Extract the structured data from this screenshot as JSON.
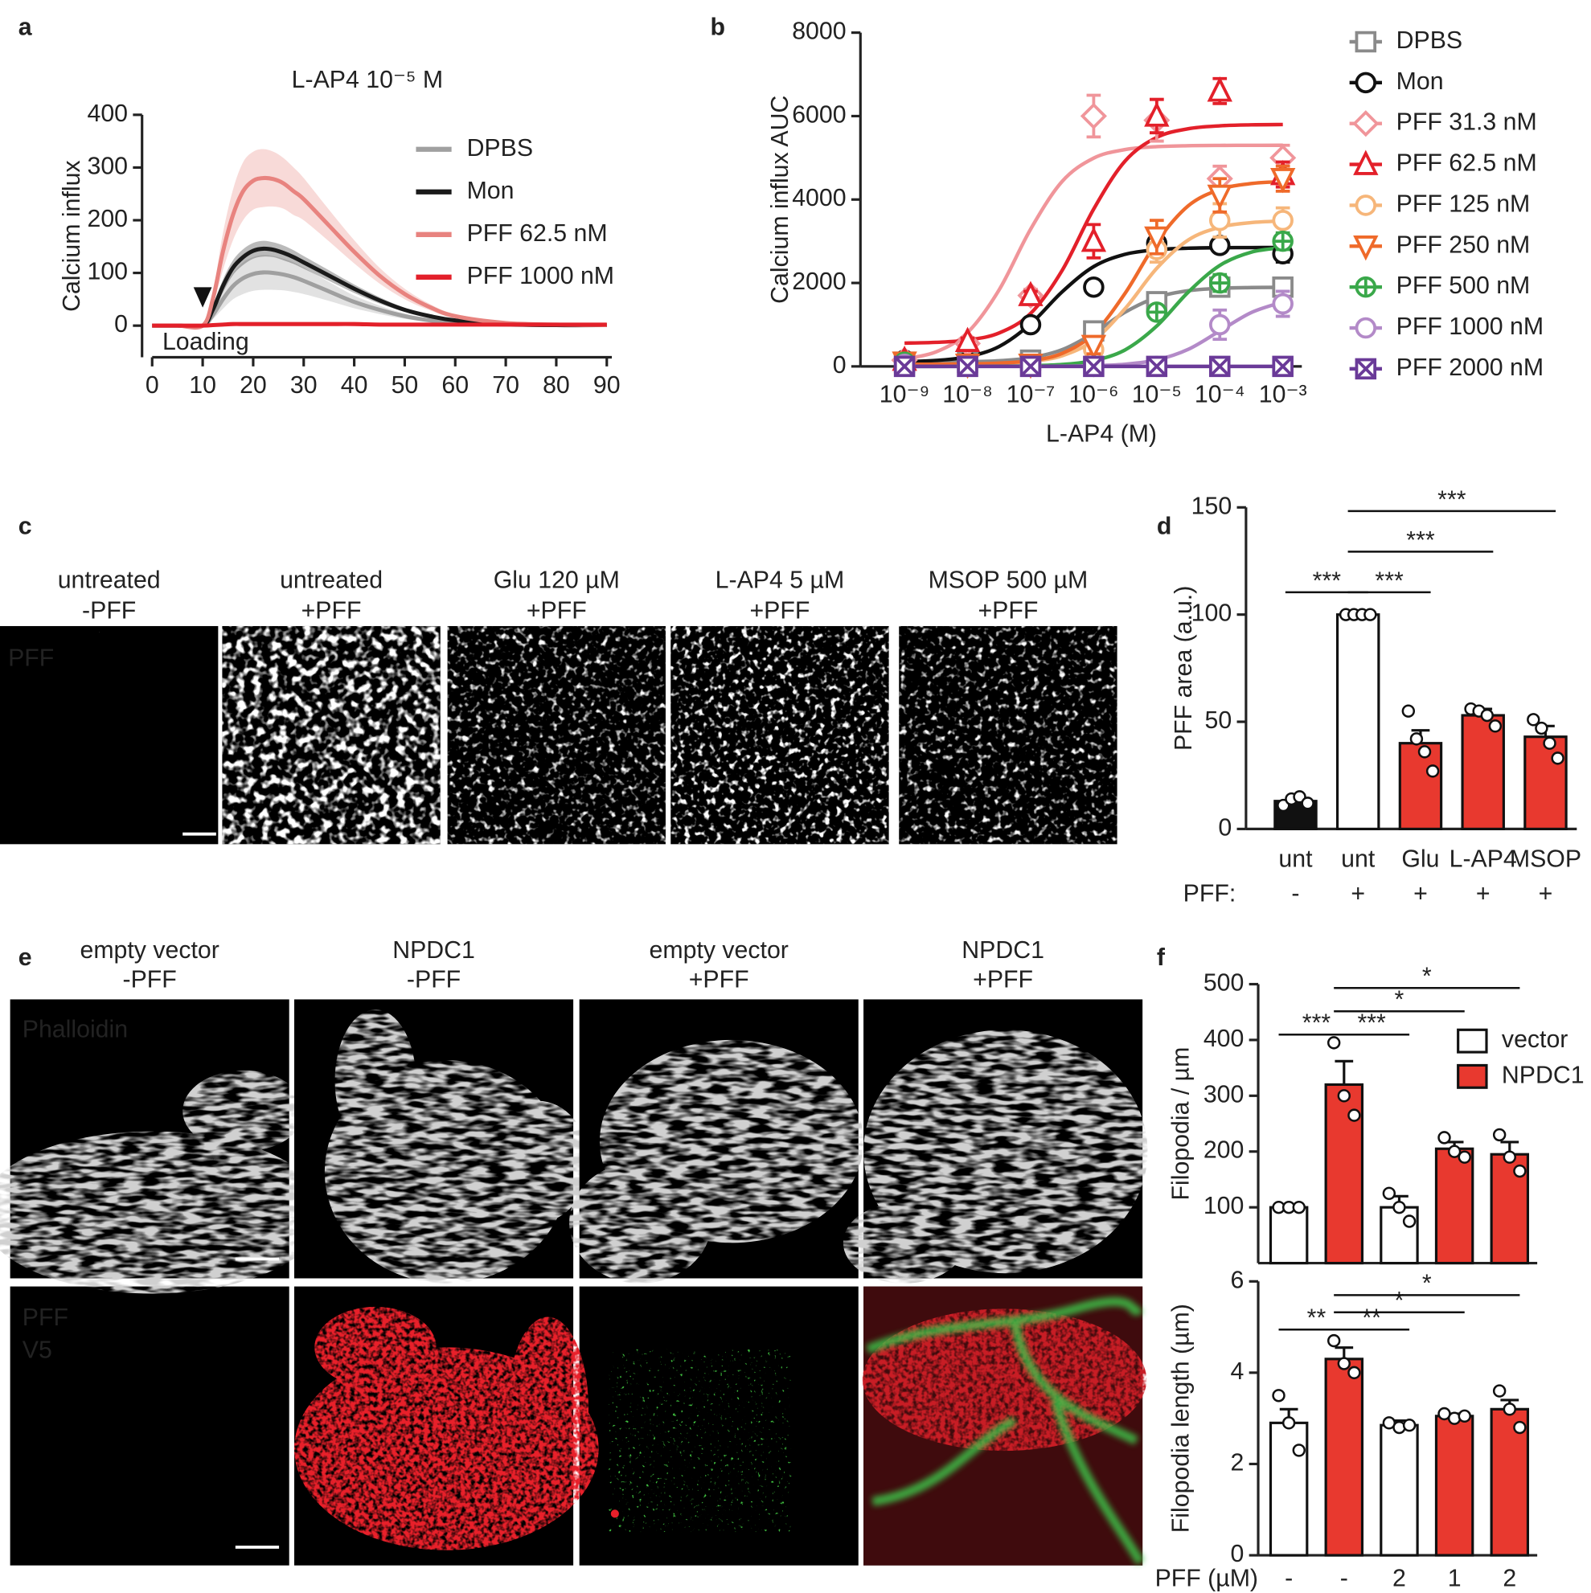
{
  "panel_labels": [
    "a",
    "b",
    "c",
    "d",
    "e",
    "f"
  ],
  "image_panels": [
    {
      "columns": [
        [
          "untreated",
          "-PFF"
        ],
        [
          "untreated",
          "+PFF"
        ],
        [
          "Glu 120 µM",
          "+PFF"
        ],
        [
          "L-AP4 5 µM",
          "+PFF"
        ],
        [
          "MSOP 500 µM",
          "+PFF"
        ]
      ],
      "channels": [
        "PFF"
      ],
      "channel_colors": [
        "#ffffff"
      ]
    },
    {
      "columns": [
        [
          "empty vector",
          "-PFF"
        ],
        [
          "NPDC1",
          "-PFF"
        ],
        [
          "empty vector",
          "+PFF"
        ],
        [
          "NPDC1",
          "+PFF"
        ]
      ],
      "channels": [
        "Phalloidin",
        "PFF",
        "V5"
      ],
      "channel_colors": [
        "#ffffff",
        "#7ac943",
        "#e8202a"
      ]
    }
  ],
  "chart_data": [
    {
      "type": "line",
      "title": "L-AP4 10⁻⁵ M",
      "ylabel": "Calcium influx",
      "annotation": "Loading",
      "marker_x": 10,
      "x": [
        0,
        5,
        10,
        12,
        14,
        16,
        18,
        20,
        22,
        24,
        26,
        28,
        30,
        35,
        40,
        45,
        50,
        55,
        60,
        70,
        80,
        90
      ],
      "xlim": [
        -2,
        91
      ],
      "xticks": [
        0,
        10,
        20,
        30,
        40,
        50,
        60,
        70,
        80,
        90
      ],
      "ylim": [
        -60,
        400
      ],
      "yticks": [
        0,
        100,
        200,
        300,
        400
      ],
      "series": [
        {
          "name": "DPBS",
          "color": "#a0a0a0",
          "values": [
            0,
            0,
            0,
            20,
            50,
            75,
            90,
            98,
            101,
            100,
            97,
            92,
            85,
            65,
            45,
            30,
            18,
            10,
            5,
            2,
            1,
            1
          ],
          "errors": [
            0,
            0,
            0,
            8,
            18,
            25,
            30,
            32,
            33,
            32,
            30,
            28,
            25,
            18,
            12,
            8,
            5,
            3,
            2,
            1,
            1,
            1
          ]
        },
        {
          "name": "Mon",
          "color": "#1a1a1a",
          "values": [
            0,
            0,
            0,
            30,
            75,
            110,
            130,
            142,
            146,
            144,
            138,
            130,
            120,
            95,
            70,
            48,
            30,
            18,
            10,
            3,
            1,
            1
          ],
          "errors": [
            0,
            0,
            0,
            6,
            12,
            14,
            15,
            15,
            15,
            14,
            14,
            13,
            12,
            10,
            8,
            6,
            4,
            3,
            2,
            1,
            1,
            1
          ]
        },
        {
          "name": "PFF 62.5 nM",
          "color": "#e8837f",
          "values": [
            0,
            0,
            0,
            50,
            140,
            210,
            255,
            275,
            280,
            278,
            270,
            255,
            240,
            190,
            140,
            95,
            60,
            35,
            18,
            5,
            2,
            1
          ],
          "errors": [
            0,
            0,
            0,
            12,
            35,
            48,
            55,
            55,
            55,
            52,
            48,
            45,
            40,
            30,
            22,
            15,
            10,
            6,
            4,
            2,
            1,
            1
          ]
        },
        {
          "name": "PFF 1000 nM",
          "color": "#e3202a",
          "values": [
            0,
            0,
            0,
            1,
            2,
            3,
            3,
            3,
            3,
            3,
            3,
            3,
            3,
            3,
            3,
            2,
            2,
            2,
            2,
            2,
            2,
            2
          ],
          "errors": [
            0,
            0,
            0,
            1,
            1,
            1,
            1,
            1,
            1,
            1,
            1,
            1,
            1,
            1,
            1,
            1,
            1,
            1,
            1,
            1,
            1,
            1
          ]
        }
      ]
    },
    {
      "type": "scatter",
      "xscale": "log",
      "xlabel": "L-AP4 (M)",
      "ylabel": "Calcium influx AUC",
      "x": [
        1e-09,
        1e-08,
        1e-07,
        1e-06,
        1e-05,
        0.0001,
        0.001
      ],
      "fit_x": [
        1e-09,
        3.16e-09,
        1e-08,
        3.16e-08,
        1e-07,
        3.16e-07,
        1e-06,
        3.16e-06,
        1e-05,
        3.16e-05,
        0.0001,
        0.000316,
        0.001
      ],
      "xlim": [
        2e-10,
        0.002
      ],
      "xticks": [
        {
          "value": 1e-09,
          "label": "10⁻⁹"
        },
        {
          "value": 1e-08,
          "label": "10⁻⁸"
        },
        {
          "value": 1e-07,
          "label": "10⁻⁷"
        },
        {
          "value": 1e-06,
          "label": "10⁻⁶"
        },
        {
          "value": 1e-05,
          "label": "10⁻⁵"
        },
        {
          "value": 0.0001,
          "label": "10⁻⁴"
        },
        {
          "value": 0.001,
          "label": "10⁻³"
        }
      ],
      "ylim": [
        0,
        8000
      ],
      "yticks": [
        0,
        2000,
        4000,
        6000,
        8000
      ],
      "series": [
        {
          "name": "DPBS",
          "color": "#8a8a8a",
          "marker": "square",
          "values": [
            100,
            100,
            150,
            850,
            1550,
            1900,
            1900
          ],
          "errors": [
            60,
            40,
            60,
            150,
            150,
            150,
            150
          ],
          "fit": [
            101,
            104,
            111,
            135,
            207,
            400,
            797,
            1300,
            1654,
            1814,
            1872,
            1890,
            1895
          ]
        },
        {
          "name": "Mon",
          "color": "#111111",
          "marker": "circle",
          "values": [
            150,
            100,
            1000,
            1900,
            2950,
            2900,
            2700
          ],
          "errors": [
            80,
            40,
            100,
            100,
            150,
            150,
            200
          ],
          "fit": [
            114,
            143,
            231,
            476,
            1017,
            1787,
            2392,
            2687,
            2796,
            2833,
            2845,
            2848,
            2850
          ]
        },
        {
          "name": "PFF 31.3 nM",
          "color": "#f0959a",
          "marker": "diamond",
          "values": [
            150,
            550,
            1700,
            6000,
            5900,
            4500,
            5000
          ],
          "errors": [
            80,
            100,
            150,
            500,
            500,
            300,
            300
          ],
          "fit": [
            181,
            348,
            812,
            1833,
            3290,
            4433,
            4992,
            5198,
            5267,
            5290,
            5297,
            5299,
            5300
          ]
        },
        {
          "name": "PFF 62.5 nM",
          "color": "#e3202a",
          "marker": "triangle",
          "values": [
            150,
            600,
            1700,
            3000,
            6000,
            6600,
            4600
          ],
          "errors": [
            80,
            80,
            100,
            400,
            400,
            300,
            300
          ],
          "fit": [
            558,
            576,
            632,
            800,
            1269,
            2300,
            3771,
            4925,
            5489,
            5697,
            5767,
            5790,
            5797
          ]
        },
        {
          "name": "PFF 125 nM",
          "color": "#f6b67a",
          "marker": "circle",
          "values": [
            100,
            50,
            50,
            400,
            2800,
            3500,
            3500
          ],
          "errors": [
            40,
            40,
            40,
            100,
            300,
            400,
            300
          ],
          "fit": [
            51,
            52,
            57,
            72,
            118,
            255,
            625,
            1387,
            2350,
            3029,
            3336,
            3447,
            3483
          ]
        },
        {
          "name": "PFF 250 nM",
          "color": "#ef6a2a",
          "marker": "triangle-down",
          "values": [
            100,
            50,
            50,
            500,
            3100,
            4100,
            4500
          ],
          "errors": [
            40,
            40,
            40,
            200,
            400,
            400,
            300
          ],
          "fit": [
            51,
            53,
            59,
            78,
            136,
            312,
            783,
            1755,
            2983,
            3849,
            4240,
            4383,
            4428
          ]
        },
        {
          "name": "PFF 500 nM",
          "color": "#3aa84a",
          "marker": "circle-plus",
          "values": [
            100,
            0,
            0,
            0,
            1300,
            2000,
            3000
          ],
          "errors": [
            30,
            30,
            30,
            30,
            150,
            200,
            200
          ],
          "fit": [
            0,
            0,
            1,
            5,
            15,
            46,
            140,
            397,
            967,
            1780,
            2420,
            2739,
            2846
          ]
        },
        {
          "name": "PFF 1000 nM",
          "color": "#b38ac8",
          "marker": "circle",
          "values": [
            50,
            0,
            0,
            0,
            0,
            1000,
            1500
          ],
          "errors": [
            20,
            20,
            20,
            20,
            20,
            350,
            300
          ],
          "fit": [
            0,
            0,
            0,
            1,
            2,
            5,
            17,
            52,
            155,
            409,
            850,
            1291,
            1545
          ]
        },
        {
          "name": "PFF 2000 nM",
          "color": "#6a3a98",
          "marker": "square-x",
          "values": [
            0,
            0,
            0,
            0,
            0,
            0,
            0
          ],
          "errors": [
            10,
            10,
            10,
            10,
            10,
            10,
            10
          ],
          "fit": [
            0,
            0,
            0,
            0,
            0,
            0,
            0,
            0,
            0,
            0,
            0,
            0,
            0
          ]
        }
      ]
    },
    {
      "type": "bar",
      "ylabel": "PFF area (a.u.)",
      "categories": [
        "unt",
        "unt",
        "Glu",
        "L-AP4",
        "MSOP"
      ],
      "row_label": "PFF:",
      "row_values": [
        "-",
        "+",
        "+",
        "+",
        "+"
      ],
      "values": [
        13,
        100,
        40,
        53,
        43
      ],
      "errors": [
        2,
        0,
        6,
        3,
        5
      ],
      "points": [
        [
          11,
          14,
          15,
          12
        ],
        [
          100,
          100,
          100,
          100
        ],
        [
          55,
          42,
          36,
          27
        ],
        [
          56,
          55,
          53,
          48
        ],
        [
          51,
          47,
          40,
          33
        ]
      ],
      "colors": [
        "#111111",
        "#ffffff",
        "#e8392f",
        "#e8392f",
        "#e8392f"
      ],
      "ylim": [
        0,
        150
      ],
      "yticks": [
        0,
        50,
        100,
        150
      ],
      "significance": [
        {
          "pair": [
            0,
            1
          ],
          "label": "***"
        },
        {
          "pair": [
            1,
            2
          ],
          "label": "***"
        },
        {
          "pair": [
            1,
            3
          ],
          "label": "***"
        },
        {
          "pair": [
            1,
            4
          ],
          "label": "***"
        }
      ]
    },
    {
      "type": "bar",
      "ylabel": "Filopodia / µm",
      "values": [
        100,
        320,
        100,
        205,
        195
      ],
      "errors": [
        0,
        42,
        20,
        12,
        22
      ],
      "points": [
        [
          100,
          100,
          100
        ],
        [
          395,
          300,
          265
        ],
        [
          125,
          100,
          75
        ],
        [
          225,
          200,
          190
        ],
        [
          230,
          190,
          165
        ]
      ],
      "colors": [
        "#ffffff",
        "#e8392f",
        "#ffffff",
        "#e8392f",
        "#e8392f"
      ],
      "legend": [
        {
          "name": "vector",
          "color": "#ffffff"
        },
        {
          "name": "NPDC1",
          "color": "#e8392f"
        }
      ],
      "ylim": [
        0,
        500
      ],
      "yticks": [
        100,
        200,
        300,
        400,
        500
      ],
      "significance": [
        {
          "pair": [
            0,
            1
          ],
          "label": "***"
        },
        {
          "pair": [
            1,
            2
          ],
          "label": "***"
        },
        {
          "pair": [
            1,
            3
          ],
          "label": "*"
        },
        {
          "pair": [
            1,
            4
          ],
          "label": "*"
        }
      ]
    },
    {
      "type": "bar",
      "ylabel": "Filopodia length (µm)",
      "row_label": "PFF (µM)",
      "row_values": [
        "-",
        "-",
        "2",
        "1",
        "2"
      ],
      "values": [
        2.9,
        4.3,
        2.85,
        3.05,
        3.2
      ],
      "errors": [
        0.3,
        0.25,
        0.1,
        0.05,
        0.2
      ],
      "points": [
        [
          3.5,
          2.9,
          2.3
        ],
        [
          4.7,
          4.2,
          4.0
        ],
        [
          2.9,
          2.8,
          2.85
        ],
        [
          3.1,
          3.0,
          3.05
        ],
        [
          3.6,
          3.2,
          2.8
        ]
      ],
      "colors": [
        "#ffffff",
        "#e8392f",
        "#ffffff",
        "#e8392f",
        "#e8392f"
      ],
      "ylim": [
        0,
        6
      ],
      "yticks": [
        0,
        2,
        4,
        6
      ],
      "significance": [
        {
          "pair": [
            0,
            1
          ],
          "label": "**"
        },
        {
          "pair": [
            1,
            2
          ],
          "label": "**"
        },
        {
          "pair": [
            1,
            3
          ],
          "label": "*"
        },
        {
          "pair": [
            1,
            4
          ],
          "label": "*"
        }
      ]
    }
  ]
}
